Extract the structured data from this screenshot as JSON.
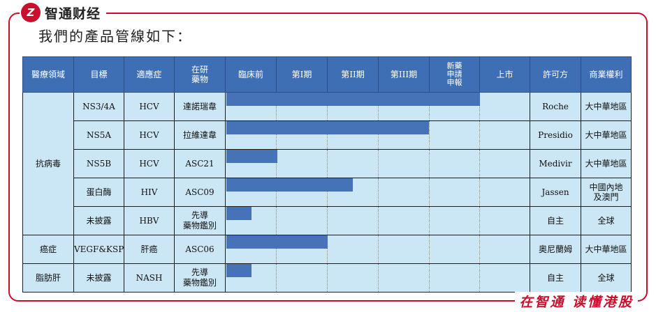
{
  "brand": {
    "logo_char": "Z",
    "name": "智通财经"
  },
  "subtitle": "我們的產品管線如下：",
  "slogan": "在智通 读懂港股",
  "watermark": "智通财经",
  "headers": {
    "area": "醫療領域",
    "target": "目標",
    "indication": "適應症",
    "drug": "在研\n藥物",
    "stages": [
      "臨床前",
      "第I期",
      "第II期",
      "第III期",
      "新藥\n申請\n申報",
      "上市"
    ],
    "licensor": "許可方",
    "rights": "商業權利"
  },
  "groups": [
    {
      "area": "抗病毒",
      "rowspan": 5
    },
    {
      "area": "癌症",
      "rowspan": 1
    },
    {
      "area": "脂肪肝",
      "rowspan": 1
    }
  ],
  "rows": [
    {
      "target": "NS3/4A",
      "indication": "HCV",
      "drug": "達諾瑞韋",
      "progress_stage": 5.0,
      "licensor": "Roche",
      "rights": "大中華地區"
    },
    {
      "target": "NS5A",
      "indication": "HCV",
      "drug": "拉維達韋",
      "progress_stage": 4.0,
      "licensor": "Presidio",
      "rights": "大中華地區"
    },
    {
      "target": "NS5B",
      "indication": "HCV",
      "drug": "ASC21",
      "progress_stage": 1.0,
      "licensor": "Medivir",
      "rights": "大中華地區"
    },
    {
      "target": "蛋白酶",
      "indication": "HIV",
      "drug": "ASC09",
      "progress_stage": 2.5,
      "licensor": "Jassen",
      "rights": "中國內地\n及澳門"
    },
    {
      "target": "未披露",
      "indication": "HBV",
      "drug": "先導\n藥物鑑別",
      "progress_stage": 0.5,
      "licensor": "自主",
      "rights": "全球"
    },
    {
      "target": "VEGF&KSP",
      "indication": "肝癌",
      "drug": "ASC06",
      "progress_stage": 2.0,
      "licensor": "奧尼蘭姆",
      "rights": "大中華地區"
    },
    {
      "target": "未披露",
      "indication": "NASH",
      "drug": "先導\n藥物鑑別",
      "progress_stage": 0.5,
      "licensor": "自主",
      "rights": "全球"
    }
  ],
  "colors": {
    "frame": "#c8102e",
    "header": "#3e6fb4",
    "cell": "#cbe6f5",
    "bar": "#4672b7"
  }
}
